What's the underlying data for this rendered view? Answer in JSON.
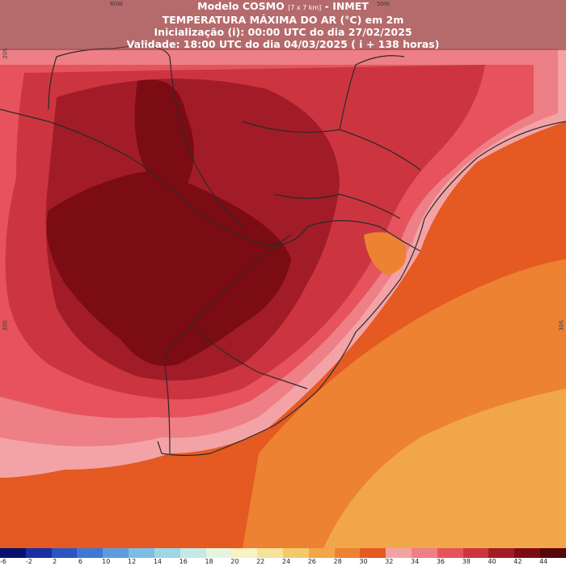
{
  "header": {
    "line1_model": "Modelo COSMO",
    "line1_res": "[7 x 7 km]",
    "line1_org": "- INMET",
    "line2": "TEMPERATURA MÁXIMA DO AR (°C) em 2m",
    "line3": "Inicialização (i): 00:00 UTC do dia 27/02/2025",
    "line4": "Validade: 18:00 UTC do dia 04/03/2025 ( i + 138 horas)"
  },
  "gridlabels": {
    "lon_60w": "60W",
    "lon_50w": "50W",
    "lat_20s": "20S",
    "lat_30s_left": "30S",
    "lat_30s_right": "30S"
  },
  "colorbar": {
    "labels": [
      "-6",
      "-2",
      "2",
      "6",
      "10",
      "12",
      "14",
      "16",
      "18",
      "20",
      "22",
      "24",
      "26",
      "28",
      "30",
      "32",
      "34",
      "36",
      "38",
      "40",
      "42",
      "44"
    ],
    "colors": [
      "#08106e",
      "#1a2fa0",
      "#2b55c0",
      "#3d78d2",
      "#5c9cdc",
      "#7bbde3",
      "#9dd6e4",
      "#c4e9e6",
      "#e6f5df",
      "#f7f3c2",
      "#f6e39a",
      "#f4c96a",
      "#f2a64a",
      "#ec8232",
      "#e45a22",
      "#f3a3a6",
      "#ee7f86",
      "#e6535c",
      "#cc3540",
      "#a11c27",
      "#7c0c14",
      "#560508"
    ]
  },
  "regions": [
    {
      "level": "42",
      "color": "#7c0c14"
    },
    {
      "level": "40",
      "color": "#a11c27"
    },
    {
      "level": "38",
      "color": "#cc3540"
    },
    {
      "level": "36",
      "color": "#e6535c"
    },
    {
      "level": "34",
      "color": "#ee7f86"
    },
    {
      "level": "32",
      "color": "#f3a3a6"
    },
    {
      "level": "30",
      "color": "#e45a22"
    },
    {
      "level": "28",
      "color": "#ec8232"
    },
    {
      "level": "26",
      "color": "#f2a64a"
    }
  ]
}
